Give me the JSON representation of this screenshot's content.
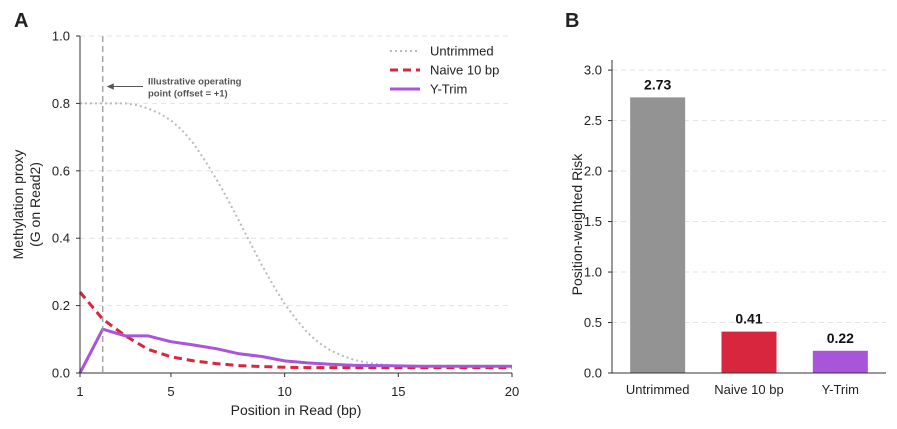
{
  "colors": {
    "untrimmed": "#bbbbbb",
    "naive": "#d7263d",
    "ytrim": "#a855d9",
    "bar_untrimmed": "#939393",
    "axis": "#333333",
    "grid": "#e3e3e3",
    "vline": "#999999",
    "annotation": "#555555"
  },
  "chart_data": [
    {
      "panel": "A",
      "type": "line",
      "title": "",
      "xlabel": "Position in Read (bp)",
      "ylabel_lines": [
        "Methylation proxy",
        "(G on Read2)"
      ],
      "xlim": [
        1,
        20
      ],
      "ylim": [
        0,
        1.0
      ],
      "xticks": [
        1,
        5,
        10,
        15,
        20
      ],
      "yticks": [
        0.0,
        0.2,
        0.4,
        0.6,
        0.8,
        1.0
      ],
      "ytick_labels": [
        "0.0",
        "0.2",
        "0.4",
        "0.6",
        "0.8",
        "1.0"
      ],
      "grid": "horizontal dashed",
      "legend_position": "top-right",
      "series": [
        {
          "name": "Untrimmed",
          "style": "dotted",
          "color_key": "untrimmed",
          "x": [
            1,
            1.5,
            2,
            2.5,
            3,
            3.5,
            4,
            4.5,
            5,
            5.5,
            6,
            6.5,
            7,
            7.5,
            8,
            8.5,
            9,
            9.5,
            10,
            10.5,
            11,
            11.5,
            12,
            12.5,
            13,
            13.5,
            14,
            14.5,
            15,
            15.5,
            16,
            16.5,
            17,
            18,
            19,
            20
          ],
          "y": [
            0.8,
            0.8,
            0.8,
            0.8,
            0.8,
            0.795,
            0.785,
            0.77,
            0.75,
            0.72,
            0.68,
            0.63,
            0.575,
            0.515,
            0.45,
            0.385,
            0.32,
            0.26,
            0.205,
            0.16,
            0.12,
            0.09,
            0.068,
            0.052,
            0.04,
            0.032,
            0.027,
            0.024,
            0.022,
            0.021,
            0.02,
            0.02,
            0.02,
            0.02,
            0.02,
            0.02
          ]
        },
        {
          "name": "Naive 10 bp",
          "style": "dashed",
          "color_key": "naive",
          "x": [
            1,
            2,
            3,
            4,
            5,
            6,
            7,
            8,
            9,
            10,
            11,
            12,
            13,
            14,
            15,
            16,
            17,
            18,
            19,
            20
          ],
          "y": [
            0.24,
            0.16,
            0.11,
            0.07,
            0.048,
            0.036,
            0.028,
            0.022,
            0.019,
            0.017,
            0.016,
            0.016,
            0.016,
            0.016,
            0.016,
            0.016,
            0.016,
            0.016,
            0.016,
            0.016
          ]
        },
        {
          "name": "Y-Trim",
          "style": "solid",
          "color_key": "ytrim",
          "x": [
            1,
            2,
            3,
            4,
            5,
            6,
            7,
            8,
            9,
            10,
            11,
            12,
            13,
            14,
            15,
            16,
            17,
            18,
            19,
            20
          ],
          "y": [
            0.0,
            0.13,
            0.11,
            0.11,
            0.093,
            0.083,
            0.072,
            0.057,
            0.049,
            0.036,
            0.03,
            0.026,
            0.023,
            0.022,
            0.021,
            0.02,
            0.02,
            0.02,
            0.02,
            0.02
          ]
        }
      ],
      "vline": {
        "x": 2
      },
      "annotation_lines": [
        "Illustrative operating",
        "point (offset = +1)"
      ],
      "annotation_target": {
        "x": 2,
        "y": 0.85
      }
    },
    {
      "panel": "B",
      "type": "bar",
      "title": "",
      "xlabel": "",
      "ylabel": "Position-weighted Risk",
      "categories": [
        "Untrimmed",
        "Naive 10 bp",
        "Y-Trim"
      ],
      "values": [
        2.73,
        0.41,
        0.22
      ],
      "value_labels": [
        "2.73",
        "0.41",
        "0.22"
      ],
      "color_keys": [
        "bar_untrimmed",
        "naive",
        "ytrim"
      ],
      "ylim": [
        0,
        3.1
      ],
      "yticks": [
        0.0,
        0.5,
        1.0,
        1.5,
        2.0,
        2.5,
        3.0
      ],
      "ytick_labels": [
        "0.0",
        "0.5",
        "1.0",
        "1.5",
        "2.0",
        "2.5",
        "3.0"
      ],
      "grid": "horizontal dashed"
    }
  ],
  "panel_labels": [
    "A",
    "B"
  ]
}
